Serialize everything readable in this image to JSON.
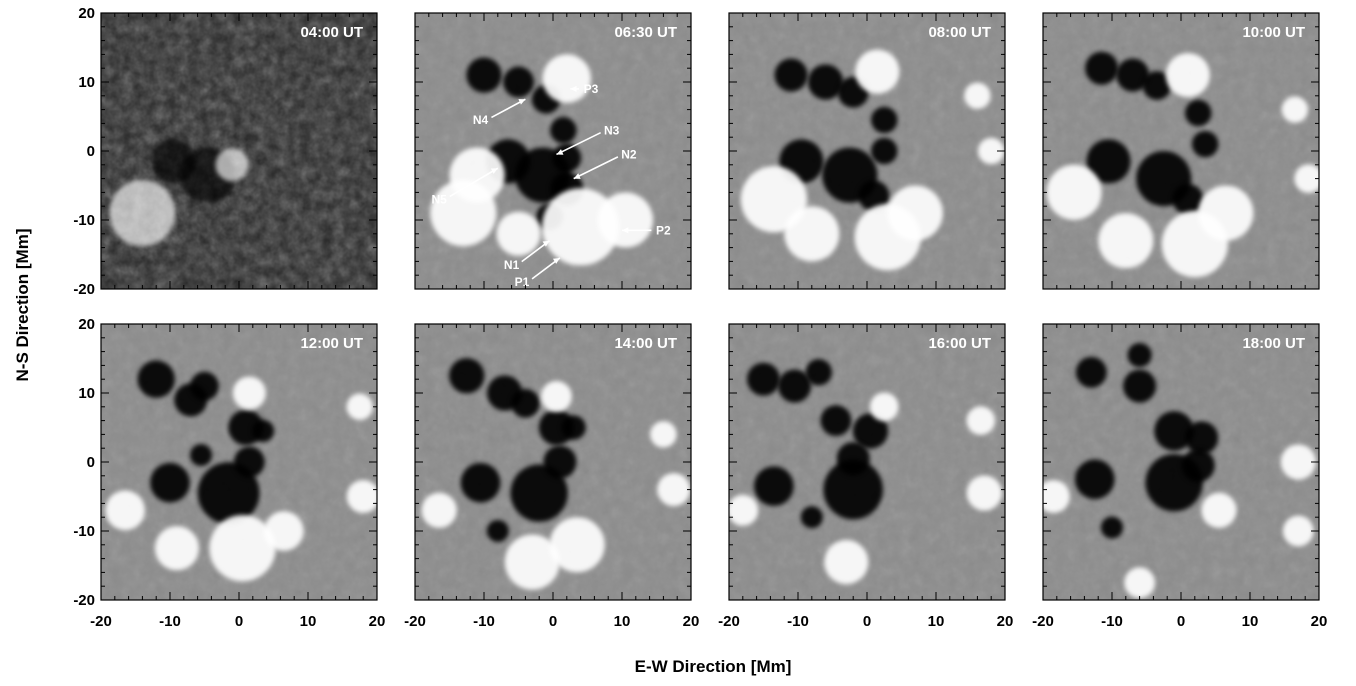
{
  "chart_data": {
    "type": "heatmap",
    "description_kind": "magnetogram time series, 2 rows x 4 columns",
    "xlabel": "E-W Direction   [Mm]",
    "ylabel": "N-S Direction   [Mm]",
    "xlim": [
      -20,
      20
    ],
    "ylim": [
      -20,
      20
    ],
    "xticks": [
      -20,
      -10,
      0,
      10,
      20
    ],
    "yticks": [
      -20,
      -10,
      0,
      10,
      20
    ],
    "grid": false,
    "colors": {
      "background": "#ffffff",
      "field_neutral": "#8c8c8c",
      "negative": "#000000",
      "positive": "#ffffff"
    },
    "panels": [
      {
        "time": "04:00 UT",
        "style": "dark",
        "annotations": [],
        "blobs": [
          {
            "x": -9.5,
            "y": -1.5,
            "r": 2.0,
            "polarity": "neg"
          },
          {
            "x": -4.5,
            "y": -3.5,
            "r": 2.5,
            "polarity": "neg"
          },
          {
            "x": -1.0,
            "y": -2.0,
            "r": 1.5,
            "polarity": "pos"
          },
          {
            "x": -14.0,
            "y": -9.0,
            "r": 3.0,
            "polarity": "pos"
          }
        ]
      },
      {
        "time": "06:30 UT",
        "style": "mag",
        "annotations": [
          {
            "label": "P3",
            "x": 5.5,
            "y": 9.0,
            "tip_x": 2.5,
            "tip_y": 9.0
          },
          {
            "label": "N4",
            "x": -10.5,
            "y": 4.5,
            "tip_x": -4.0,
            "tip_y": 7.5
          },
          {
            "label": "N3",
            "x": 8.5,
            "y": 3.0,
            "tip_x": 0.5,
            "tip_y": -0.5
          },
          {
            "label": "N2",
            "x": 11.0,
            "y": -0.5,
            "tip_x": 3.0,
            "tip_y": -4.0
          },
          {
            "label": "N5",
            "x": -16.5,
            "y": -7.0,
            "tip_x": -8.0,
            "tip_y": -2.5
          },
          {
            "label": "P2",
            "x": 16.0,
            "y": -11.5,
            "tip_x": 10.0,
            "tip_y": -11.5
          },
          {
            "label": "N1",
            "x": -6.0,
            "y": -16.5,
            "tip_x": -0.5,
            "tip_y": -13.0
          },
          {
            "label": "P1",
            "x": -4.5,
            "y": -19.0,
            "tip_x": 1.0,
            "tip_y": -15.5
          }
        ],
        "blobs": [
          {
            "x": -10.0,
            "y": 11.0,
            "r": 1.6,
            "polarity": "neg"
          },
          {
            "x": -5.0,
            "y": 10.0,
            "r": 1.4,
            "polarity": "neg"
          },
          {
            "x": -1.0,
            "y": 7.5,
            "r": 1.3,
            "polarity": "neg"
          },
          {
            "x": 1.5,
            "y": 3.0,
            "r": 1.2,
            "polarity": "neg"
          },
          {
            "x": 2.0,
            "y": -1.0,
            "r": 1.3,
            "polarity": "neg"
          },
          {
            "x": -6.5,
            "y": -1.5,
            "r": 2.0,
            "polarity": "neg"
          },
          {
            "x": -1.5,
            "y": -3.5,
            "r": 2.5,
            "polarity": "neg"
          },
          {
            "x": 2.0,
            "y": -5.5,
            "r": 1.5,
            "polarity": "neg"
          },
          {
            "x": -0.5,
            "y": -9.5,
            "r": 1.2,
            "polarity": "neg"
          },
          {
            "x": 2.0,
            "y": 10.5,
            "r": 2.2,
            "polarity": "pos"
          },
          {
            "x": -11.0,
            "y": -3.5,
            "r": 2.5,
            "polarity": "pos"
          },
          {
            "x": -13.0,
            "y": -9.0,
            "r": 3.0,
            "polarity": "pos"
          },
          {
            "x": 4.0,
            "y": -11.0,
            "r": 3.5,
            "polarity": "pos"
          },
          {
            "x": 10.5,
            "y": -10.0,
            "r": 2.5,
            "polarity": "pos"
          },
          {
            "x": -5.0,
            "y": -12.0,
            "r": 2.0,
            "polarity": "pos"
          }
        ]
      },
      {
        "time": "08:00 UT",
        "style": "mag",
        "annotations": [],
        "blobs": [
          {
            "x": -11.0,
            "y": 11.0,
            "r": 1.5,
            "polarity": "neg"
          },
          {
            "x": -6.0,
            "y": 10.0,
            "r": 1.6,
            "polarity": "neg"
          },
          {
            "x": -2.0,
            "y": 8.5,
            "r": 1.4,
            "polarity": "neg"
          },
          {
            "x": 2.5,
            "y": 4.5,
            "r": 1.2,
            "polarity": "neg"
          },
          {
            "x": 2.5,
            "y": 0.0,
            "r": 1.2,
            "polarity": "neg"
          },
          {
            "x": -9.5,
            "y": -1.5,
            "r": 2.0,
            "polarity": "neg"
          },
          {
            "x": -2.5,
            "y": -3.5,
            "r": 2.5,
            "polarity": "neg"
          },
          {
            "x": 1.0,
            "y": -6.5,
            "r": 1.4,
            "polarity": "neg"
          },
          {
            "x": 1.5,
            "y": 11.5,
            "r": 2.0,
            "polarity": "pos"
          },
          {
            "x": -13.5,
            "y": -7.0,
            "r": 3.0,
            "polarity": "pos"
          },
          {
            "x": -8.0,
            "y": -12.0,
            "r": 2.5,
            "polarity": "pos"
          },
          {
            "x": 3.0,
            "y": -12.5,
            "r": 3.0,
            "polarity": "pos"
          },
          {
            "x": 7.0,
            "y": -9.0,
            "r": 2.5,
            "polarity": "pos"
          },
          {
            "x": 16.0,
            "y": 8.0,
            "r": 1.2,
            "polarity": "pos"
          },
          {
            "x": 18.0,
            "y": 0.0,
            "r": 1.2,
            "polarity": "pos"
          }
        ]
      },
      {
        "time": "10:00 UT",
        "style": "mag",
        "annotations": [],
        "blobs": [
          {
            "x": -11.5,
            "y": 12.0,
            "r": 1.5,
            "polarity": "neg"
          },
          {
            "x": -7.0,
            "y": 11.0,
            "r": 1.5,
            "polarity": "neg"
          },
          {
            "x": -3.5,
            "y": 9.5,
            "r": 1.3,
            "polarity": "neg"
          },
          {
            "x": 2.5,
            "y": 5.5,
            "r": 1.2,
            "polarity": "neg"
          },
          {
            "x": 3.5,
            "y": 1.0,
            "r": 1.2,
            "polarity": "neg"
          },
          {
            "x": -10.5,
            "y": -1.5,
            "r": 2.0,
            "polarity": "neg"
          },
          {
            "x": -2.5,
            "y": -4.0,
            "r": 2.5,
            "polarity": "neg"
          },
          {
            "x": 1.0,
            "y": -7.0,
            "r": 1.4,
            "polarity": "neg"
          },
          {
            "x": 1.0,
            "y": 11.0,
            "r": 2.0,
            "polarity": "pos"
          },
          {
            "x": -15.5,
            "y": -6.0,
            "r": 2.5,
            "polarity": "pos"
          },
          {
            "x": -8.0,
            "y": -13.0,
            "r": 2.5,
            "polarity": "pos"
          },
          {
            "x": 2.0,
            "y": -13.5,
            "r": 3.0,
            "polarity": "pos"
          },
          {
            "x": 6.5,
            "y": -9.0,
            "r": 2.5,
            "polarity": "pos"
          },
          {
            "x": 16.5,
            "y": 6.0,
            "r": 1.2,
            "polarity": "pos"
          },
          {
            "x": 18.5,
            "y": -4.0,
            "r": 1.3,
            "polarity": "pos"
          }
        ]
      },
      {
        "time": "12:00 UT",
        "style": "mag",
        "annotations": [],
        "blobs": [
          {
            "x": -12.0,
            "y": 12.0,
            "r": 1.7,
            "polarity": "neg"
          },
          {
            "x": -7.0,
            "y": 9.0,
            "r": 1.5,
            "polarity": "neg"
          },
          {
            "x": -5.0,
            "y": 11.0,
            "r": 1.3,
            "polarity": "neg"
          },
          {
            "x": 1.0,
            "y": 5.0,
            "r": 1.6,
            "polarity": "neg"
          },
          {
            "x": 3.5,
            "y": 4.5,
            "r": 1.0,
            "polarity": "neg"
          },
          {
            "x": -10.0,
            "y": -3.0,
            "r": 1.8,
            "polarity": "neg"
          },
          {
            "x": -1.5,
            "y": -4.5,
            "r": 2.8,
            "polarity": "neg"
          },
          {
            "x": 1.5,
            "y": 0.0,
            "r": 1.4,
            "polarity": "neg"
          },
          {
            "x": -5.5,
            "y": 1.0,
            "r": 1.0,
            "polarity": "neg"
          },
          {
            "x": 1.5,
            "y": 10.0,
            "r": 1.5,
            "polarity": "pos"
          },
          {
            "x": -16.5,
            "y": -7.0,
            "r": 1.8,
            "polarity": "pos"
          },
          {
            "x": -9.0,
            "y": -12.5,
            "r": 2.0,
            "polarity": "pos"
          },
          {
            "x": 0.5,
            "y": -12.5,
            "r": 3.0,
            "polarity": "pos"
          },
          {
            "x": 6.5,
            "y": -10.0,
            "r": 1.8,
            "polarity": "pos"
          },
          {
            "x": 17.5,
            "y": 8.0,
            "r": 1.2,
            "polarity": "pos"
          },
          {
            "x": 18.0,
            "y": -5.0,
            "r": 1.5,
            "polarity": "pos"
          }
        ]
      },
      {
        "time": "14:00 UT",
        "style": "mag",
        "annotations": [],
        "blobs": [
          {
            "x": -12.5,
            "y": 12.5,
            "r": 1.6,
            "polarity": "neg"
          },
          {
            "x": -7.0,
            "y": 10.0,
            "r": 1.6,
            "polarity": "neg"
          },
          {
            "x": -4.0,
            "y": 8.5,
            "r": 1.3,
            "polarity": "neg"
          },
          {
            "x": 0.5,
            "y": 5.0,
            "r": 1.6,
            "polarity": "neg"
          },
          {
            "x": 3.0,
            "y": 5.0,
            "r": 1.1,
            "polarity": "neg"
          },
          {
            "x": -10.5,
            "y": -3.0,
            "r": 1.8,
            "polarity": "neg"
          },
          {
            "x": -2.0,
            "y": -4.5,
            "r": 2.6,
            "polarity": "neg"
          },
          {
            "x": 1.0,
            "y": 0.0,
            "r": 1.5,
            "polarity": "neg"
          },
          {
            "x": -8.0,
            "y": -10.0,
            "r": 1.0,
            "polarity": "neg"
          },
          {
            "x": 0.5,
            "y": 9.5,
            "r": 1.4,
            "polarity": "pos"
          },
          {
            "x": -16.5,
            "y": -7.0,
            "r": 1.6,
            "polarity": "pos"
          },
          {
            "x": -3.0,
            "y": -14.5,
            "r": 2.5,
            "polarity": "pos"
          },
          {
            "x": 3.5,
            "y": -12.0,
            "r": 2.5,
            "polarity": "pos"
          },
          {
            "x": 16.0,
            "y": 4.0,
            "r": 1.2,
            "polarity": "pos"
          },
          {
            "x": 17.5,
            "y": -4.0,
            "r": 1.5,
            "polarity": "pos"
          }
        ]
      },
      {
        "time": "16:00 UT",
        "style": "mag",
        "annotations": [],
        "blobs": [
          {
            "x": -15.0,
            "y": 12.0,
            "r": 1.5,
            "polarity": "neg"
          },
          {
            "x": -10.5,
            "y": 11.0,
            "r": 1.5,
            "polarity": "neg"
          },
          {
            "x": -7.0,
            "y": 13.0,
            "r": 1.2,
            "polarity": "neg"
          },
          {
            "x": -4.5,
            "y": 6.0,
            "r": 1.4,
            "polarity": "neg"
          },
          {
            "x": 0.5,
            "y": 4.5,
            "r": 1.6,
            "polarity": "neg"
          },
          {
            "x": -13.5,
            "y": -3.5,
            "r": 1.8,
            "polarity": "neg"
          },
          {
            "x": -2.0,
            "y": -4.0,
            "r": 2.7,
            "polarity": "neg"
          },
          {
            "x": -2.0,
            "y": 0.5,
            "r": 1.5,
            "polarity": "neg"
          },
          {
            "x": -8.0,
            "y": -8.0,
            "r": 1.0,
            "polarity": "neg"
          },
          {
            "x": 2.5,
            "y": 8.0,
            "r": 1.3,
            "polarity": "pos"
          },
          {
            "x": -18.0,
            "y": -7.0,
            "r": 1.4,
            "polarity": "pos"
          },
          {
            "x": -3.0,
            "y": -14.5,
            "r": 2.0,
            "polarity": "pos"
          },
          {
            "x": 16.5,
            "y": 6.0,
            "r": 1.3,
            "polarity": "pos"
          },
          {
            "x": 17.0,
            "y": -4.5,
            "r": 1.6,
            "polarity": "pos"
          }
        ]
      },
      {
        "time": "18:00 UT",
        "style": "mag",
        "annotations": [],
        "blobs": [
          {
            "x": -13.0,
            "y": 13.0,
            "r": 1.4,
            "polarity": "neg"
          },
          {
            "x": -6.0,
            "y": 11.0,
            "r": 1.5,
            "polarity": "neg"
          },
          {
            "x": -6.0,
            "y": 15.5,
            "r": 1.1,
            "polarity": "neg"
          },
          {
            "x": -1.0,
            "y": 4.5,
            "r": 1.8,
            "polarity": "neg"
          },
          {
            "x": 3.0,
            "y": 3.5,
            "r": 1.5,
            "polarity": "neg"
          },
          {
            "x": -12.5,
            "y": -2.5,
            "r": 1.8,
            "polarity": "neg"
          },
          {
            "x": -1.0,
            "y": -3.0,
            "r": 2.6,
            "polarity": "neg"
          },
          {
            "x": 2.5,
            "y": -0.5,
            "r": 1.5,
            "polarity": "neg"
          },
          {
            "x": -10.0,
            "y": -9.5,
            "r": 1.0,
            "polarity": "neg"
          },
          {
            "x": -18.5,
            "y": -5.0,
            "r": 1.5,
            "polarity": "pos"
          },
          {
            "x": 5.5,
            "y": -7.0,
            "r": 1.6,
            "polarity": "pos"
          },
          {
            "x": -6.0,
            "y": -17.5,
            "r": 1.4,
            "polarity": "pos"
          },
          {
            "x": 17.0,
            "y": 0.0,
            "r": 1.6,
            "polarity": "pos"
          },
          {
            "x": 17.0,
            "y": -10.0,
            "r": 1.4,
            "polarity": "pos"
          }
        ]
      }
    ]
  }
}
